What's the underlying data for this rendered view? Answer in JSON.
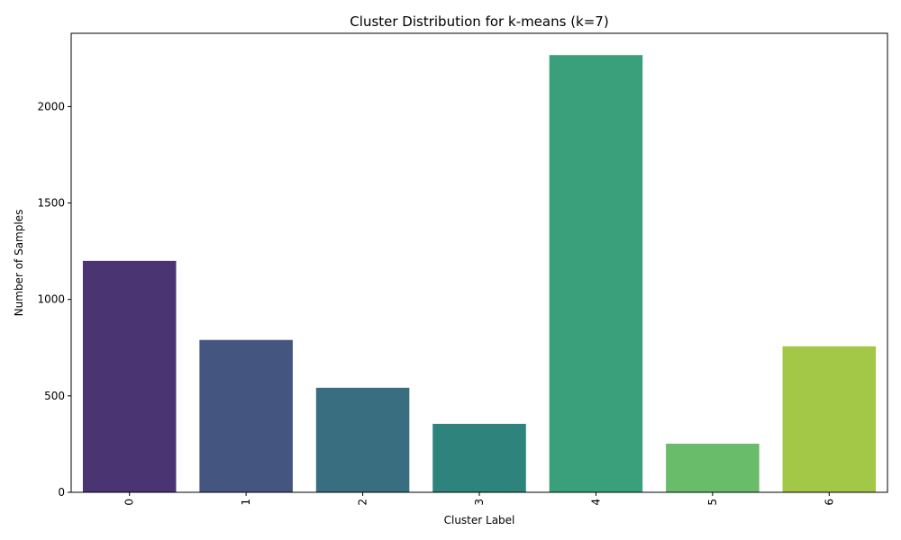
{
  "chart_data": {
    "type": "bar",
    "title": "Cluster Distribution for k-means (k=7)",
    "xlabel": "Cluster Label",
    "ylabel": "Number of Samples",
    "categories": [
      "0",
      "1",
      "2",
      "3",
      "4",
      "5",
      "6"
    ],
    "values": [
      1200,
      790,
      542,
      355,
      2267,
      252,
      757
    ],
    "colors": [
      "#4a3572",
      "#44557f",
      "#396e80",
      "#2e847d",
      "#3aa07b",
      "#69bc6a",
      "#a3c847"
    ],
    "ylim": [
      0,
      2380
    ],
    "yticks": [
      0,
      500,
      1000,
      1500,
      2000
    ],
    "grid": false,
    "legend": false
  }
}
